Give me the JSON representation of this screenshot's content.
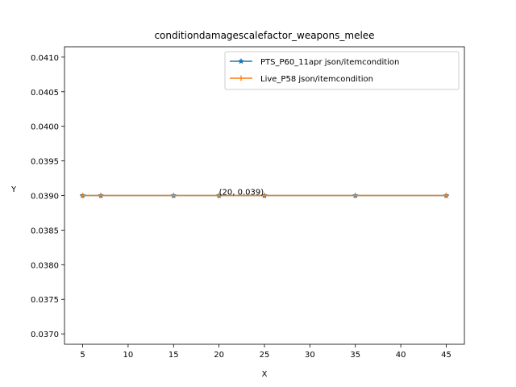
{
  "chart_data": {
    "type": "line",
    "title": "conditiondamagescalefactor_weapons_melee",
    "xlabel": "X",
    "ylabel": "Y",
    "xlim": [
      3.0,
      47.0
    ],
    "ylim": [
      0.03685,
      0.04115
    ],
    "xticks": [
      5,
      10,
      15,
      20,
      25,
      30,
      35,
      40,
      45
    ],
    "yticks": [
      0.037,
      0.0375,
      0.038,
      0.0385,
      0.039,
      0.0395,
      0.04,
      0.0405,
      0.041
    ],
    "ytick_labels": [
      "0.0370",
      "0.0375",
      "0.0380",
      "0.0385",
      "0.0390",
      "0.0395",
      "0.0400",
      "0.0405",
      "0.0410"
    ],
    "grid": false,
    "legend_position": "top-right",
    "series": [
      {
        "name": "PTS_P60_11apr json/itemcondition",
        "color": "#1f77b4",
        "marker": "star",
        "x": [
          5,
          7,
          15,
          20,
          25,
          35,
          45
        ],
        "y": [
          0.039,
          0.039,
          0.039,
          0.039,
          0.039,
          0.039,
          0.039
        ]
      },
      {
        "name": "Live_P58 json/itemcondition",
        "color": "#ff7f0e",
        "marker": "plus",
        "x": [
          5,
          7,
          15,
          20,
          25,
          35,
          45
        ],
        "y": [
          0.039,
          0.039,
          0.039,
          0.039,
          0.039,
          0.039,
          0.039
        ]
      }
    ],
    "annotations": [
      {
        "text": "(20, 0.039)",
        "x": 20,
        "y": 0.039
      }
    ]
  }
}
